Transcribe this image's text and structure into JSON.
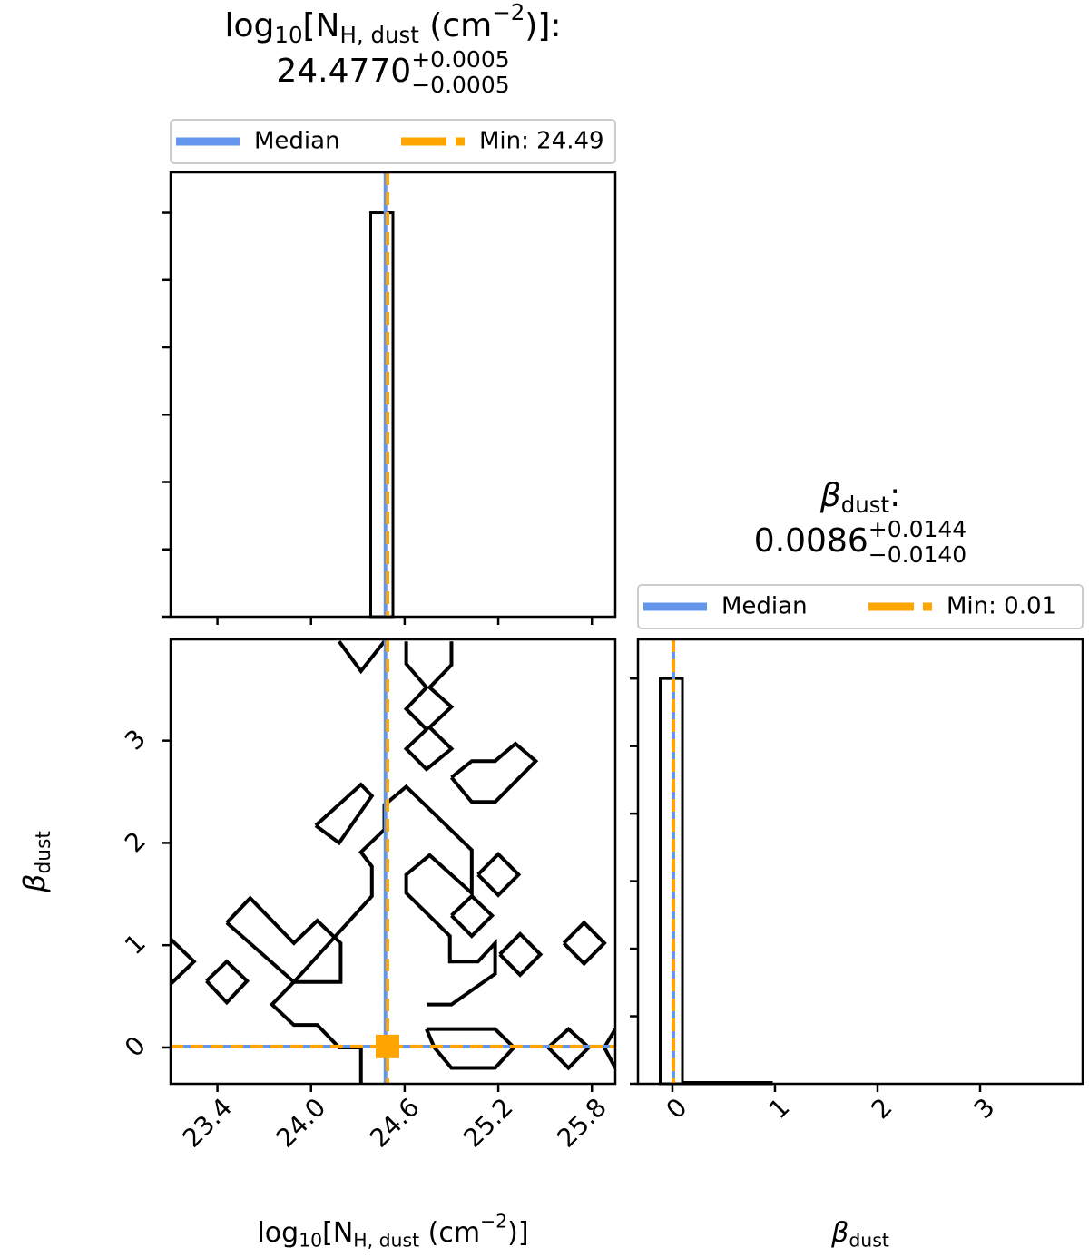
{
  "chart_data": [
    {
      "type": "histogram",
      "title": [
        {
          "text": "log"
        },
        {
          "sub": "10"
        },
        {
          "text": "[N"
        },
        {
          "sub": "H, dust"
        },
        {
          "text": " (cm"
        },
        {
          "sup": "−2"
        },
        {
          "text": ")]:"
        }
      ],
      "estimate": {
        "number": "24.4770",
        "upper": "+0.0005",
        "lower": "−0.0005"
      },
      "bins": [
        23.1,
        23.2425,
        23.385,
        23.5275,
        23.67,
        23.8125,
        23.955,
        24.0975,
        24.24,
        24.3825,
        24.525,
        24.6675,
        24.81,
        24.9525,
        25.095,
        25.2375,
        25.38,
        25.5225,
        25.665,
        25.8075,
        25.95
      ],
      "counts": [
        0,
        0,
        0,
        0,
        0,
        0,
        0,
        0,
        0,
        6,
        0,
        0,
        0,
        0,
        0,
        0,
        0,
        0,
        0,
        0
      ],
      "xlim": [
        23.1,
        25.95
      ],
      "xticks": [
        23.4,
        24,
        24.6,
        25.2,
        25.8
      ],
      "ylim": [
        0,
        6.6
      ],
      "yticks": [
        0,
        1,
        2,
        3,
        4,
        5,
        6
      ],
      "tick_labels": false,
      "lines": [
        {
          "name": "Median",
          "value": 24.477,
          "color": "#6495ed",
          "dashed": false
        },
        {
          "name": "Min: 24.49",
          "value": 24.49,
          "color": "#ffa500",
          "dashed": true
        }
      ],
      "legend": "top"
    },
    {
      "type": "contour",
      "xlim": [
        23.1,
        25.95
      ],
      "xticks": [
        {
          "value": 23.4,
          "label": "23.4"
        },
        {
          "value": 24,
          "label": "24.0"
        },
        {
          "value": 24.6,
          "label": "24.6"
        },
        {
          "value": 25.2,
          "label": "25.2"
        },
        {
          "value": 25.8,
          "label": "25.8"
        }
      ],
      "ylim": [
        -0.355,
        3.99
      ],
      "yticks": [
        0,
        1,
        2,
        3
      ],
      "tick_labels": true,
      "xlabel": [
        {
          "text": "log"
        },
        {
          "sub": "10"
        },
        {
          "text": "[N"
        },
        {
          "sub": "H, dust"
        },
        {
          "text": " (cm"
        },
        {
          "sup": "−2"
        },
        {
          "text": ")]"
        }
      ],
      "ylabel": [
        {
          "math": "β"
        },
        {
          "sub": "dust"
        }
      ],
      "contours": [
        {
          "x": [
            24.18,
            24.32,
            24.47
          ],
          "y": [
            3.97,
            3.68,
            3.97
          ]
        },
        {
          "x": [
            24.61,
            24.61,
            24.74,
            24.61,
            24.74,
            24.61,
            24.74,
            24.9,
            24.76,
            24.9,
            24.76,
            24.9,
            24.9
          ],
          "y": [
            3.97,
            3.75,
            3.52,
            3.31,
            3.11,
            2.92,
            2.72,
            2.92,
            3.13,
            3.33,
            3.52,
            3.74,
            3.97
          ]
        },
        {
          "x": [
            24.9,
            25.03,
            25.18,
            25.44,
            25.31,
            25.18,
            25.03,
            24.9
          ],
          "y": [
            2.64,
            2.4,
            2.4,
            2.8,
            2.97,
            2.8,
            2.8,
            2.64
          ]
        },
        {
          "x": [
            24.03,
            24.32,
            24.39,
            24.18,
            24.03
          ],
          "y": [
            2.17,
            2.57,
            2.46,
            2.0,
            2.17
          ]
        },
        {
          "x": [
            23.46,
            23.61,
            23.89,
            24.04,
            24.19,
            24.19,
            23.89,
            23.46
          ],
          "y": [
            1.22,
            1.46,
            1.02,
            1.24,
            1.02,
            0.64,
            0.64,
            1.22
          ]
        },
        {
          "x": [
            23.89,
            24.39,
            24.39,
            24.32,
            24.47,
            24.47,
            24.61,
            25.03,
            25.03,
            24.76,
            24.61,
            24.61,
            24.89,
            24.89,
            25.07,
            25.18,
            25.18,
            24.9,
            24.74
          ],
          "y": [
            0.64,
            1.48,
            1.77,
            1.91,
            2.13,
            2.37,
            2.55,
            1.93,
            1.51,
            1.88,
            1.69,
            1.51,
            1.09,
            0.84,
            0.84,
            1.02,
            0.72,
            0.42,
            0.42
          ]
        },
        {
          "x": [
            23.1,
            23.25,
            23.1
          ],
          "y": [
            1.06,
            0.84,
            0.62
          ]
        },
        {
          "x": [
            23.33,
            23.46,
            23.59,
            23.46,
            23.33
          ],
          "y": [
            0.65,
            0.84,
            0.65,
            0.44,
            0.65
          ]
        },
        {
          "x": [
            24.9,
            25.03,
            25.16,
            25.03,
            24.9
          ],
          "y": [
            1.29,
            1.48,
            1.29,
            1.09,
            1.29
          ]
        },
        {
          "x": [
            25.07,
            25.2,
            25.33,
            25.2,
            25.07
          ],
          "y": [
            1.69,
            1.89,
            1.69,
            1.49,
            1.69
          ]
        },
        {
          "x": [
            25.21,
            25.34,
            25.47,
            25.34,
            25.21
          ],
          "y": [
            0.91,
            1.11,
            0.91,
            0.71,
            0.91
          ]
        },
        {
          "x": [
            25.62,
            25.75,
            25.88,
            25.75,
            25.62
          ],
          "y": [
            1.02,
            1.22,
            1.02,
            0.82,
            1.02
          ]
        },
        {
          "x": [
            23.89,
            23.75,
            23.89,
            24.04,
            24.18,
            24.32,
            24.32
          ],
          "y": [
            0.64,
            0.42,
            0.22,
            0.22,
            0,
            0,
            -0.35
          ]
        },
        {
          "x": [
            24.74,
            25.18,
            25.3,
            25.18,
            24.9,
            24.79,
            24.74
          ],
          "y": [
            0.18,
            0.18,
            0,
            -0.2,
            -0.2,
            0,
            0.18
          ]
        },
        {
          "x": [
            25.52,
            25.65,
            25.78,
            25.65,
            25.52
          ],
          "y": [
            0,
            0.18,
            0,
            -0.2,
            0
          ]
        },
        {
          "x": [
            25.95,
            25.88,
            25.95
          ],
          "y": [
            0.18,
            0,
            -0.2
          ]
        }
      ],
      "vlines": [
        {
          "value": 24.477,
          "color": "#6495ed",
          "dashed": false
        },
        {
          "value": 24.49,
          "color": "#ffa500",
          "dashed": true
        }
      ],
      "hlines": [
        {
          "value": 0.0086,
          "color": "#6495ed",
          "dashed": false
        },
        {
          "value": 0.01,
          "color": "#ffa500",
          "dashed": true
        }
      ],
      "point": {
        "x": 24.49,
        "y": 0.01,
        "color": "#ffa500"
      }
    },
    {
      "type": "histogram",
      "title": [
        {
          "math": "β"
        },
        {
          "sub": "dust"
        },
        {
          "text": ":"
        }
      ],
      "estimate": {
        "number": "0.0086",
        "upper": "+0.0144",
        "lower": "−0.0140"
      },
      "bins": [
        -0.336,
        -0.1192,
        0.0976,
        0.3144,
        0.5312,
        0.748,
        0.9648,
        1.1816,
        1.3984,
        1.6152,
        1.832,
        2.0488,
        2.2656,
        2.4824,
        2.6992,
        2.916,
        3.1328,
        3.3496,
        3.5664,
        3.7832,
        4.0
      ],
      "counts": [
        0,
        6,
        0.02,
        0.02,
        0.02,
        0.02,
        0,
        0,
        0,
        0,
        0,
        0,
        0,
        0,
        0,
        0,
        0,
        0,
        0,
        0
      ],
      "xlim": [
        -0.336,
        4.0
      ],
      "xticks": [
        0,
        1,
        2,
        3
      ],
      "ylim": [
        0,
        6.58
      ],
      "yticks": [
        0,
        1,
        2,
        3,
        4,
        5,
        6
      ],
      "tick_labels": true,
      "xlabel": [
        {
          "math": "β"
        },
        {
          "sub": "dust"
        }
      ],
      "lines": [
        {
          "name": "Median",
          "value": 0.0086,
          "color": "#6495ed",
          "dashed": false
        },
        {
          "name": "Min: 0.01",
          "value": 0.01,
          "color": "#ffa500",
          "dashed": true
        }
      ],
      "legend": "top"
    }
  ]
}
